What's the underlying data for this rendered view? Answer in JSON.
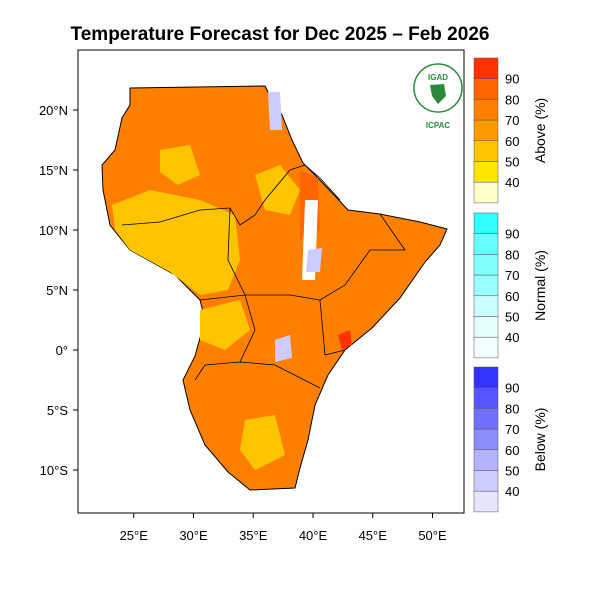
{
  "title": "Temperature Forecast for Dec 2025 – Feb 2026",
  "logo": {
    "top_text": "IGAD",
    "bottom_text": "ICPAC"
  },
  "axes": {
    "lat_ticks": [
      "20°N",
      "15°N",
      "10°N",
      "5°N",
      "0°",
      "5°S",
      "10°S"
    ],
    "lat_values": [
      20,
      15,
      10,
      5,
      0,
      -5,
      -10
    ],
    "lon_ticks": [
      "25°E",
      "30°E",
      "35°E",
      "40°E",
      "45°E",
      "50°E"
    ],
    "lon_values": [
      25,
      30,
      35,
      40,
      45,
      50
    ]
  },
  "legends": [
    {
      "title": "Above (%)",
      "labels": [
        "90",
        "80",
        "70",
        "60",
        "50",
        "40"
      ],
      "colors": [
        "#ff3300",
        "#ff6600",
        "#ff8000",
        "#ff9900",
        "#ffc400",
        "#ffe600",
        "#ffffcc"
      ]
    },
    {
      "title": "Normal (%)",
      "labels": [
        "90",
        "80",
        "70",
        "60",
        "50",
        "40"
      ],
      "colors": [
        "#33ffff",
        "#66ffff",
        "#80ffff",
        "#99ffff",
        "#ccffff",
        "#e6ffff",
        "#f2ffff"
      ]
    },
    {
      "title": "Below (%)",
      "labels": [
        "90",
        "80",
        "70",
        "60",
        "50",
        "40"
      ],
      "colors": [
        "#3333ff",
        "#5555ff",
        "#7070ff",
        "#8c8cff",
        "#b3b3ff",
        "#ccccff",
        "#e6e6ff"
      ]
    }
  ]
}
